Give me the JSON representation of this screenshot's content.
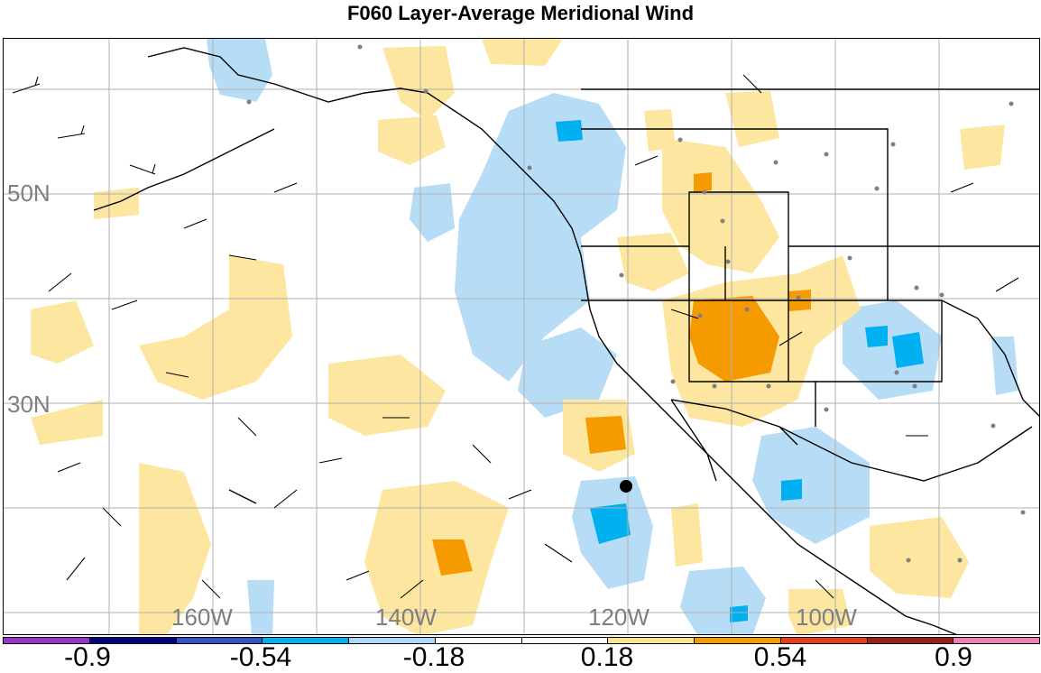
{
  "title": "F060 Layer-Average Meridional Wind",
  "lat_labels": [
    "50N",
    "30N"
  ],
  "lon_labels": [
    "160W",
    "140W",
    "120W",
    "100W"
  ],
  "colorbar": {
    "colors": [
      "#9933cc",
      "#000080",
      "#3355cc",
      "#00b0f0",
      "#aad8f6",
      "#ffffff",
      "#ffffff",
      "#fce58f",
      "#f59a00",
      "#e83c1a",
      "#a01c1c",
      "#ee7fb6"
    ],
    "tick_labels": [
      "-0.9",
      "-0.54",
      "-0.18",
      "0.18",
      "0.54",
      "0.9"
    ]
  },
  "legend_colors": {
    "neg_light": "#b7dcf5",
    "neg_mid": "#00b0f0",
    "pos_light": "#fce6a0",
    "pos_mid": "#f59a00",
    "land_line": "#000000",
    "grid": "#b0b0b0",
    "station": "#808080"
  }
}
